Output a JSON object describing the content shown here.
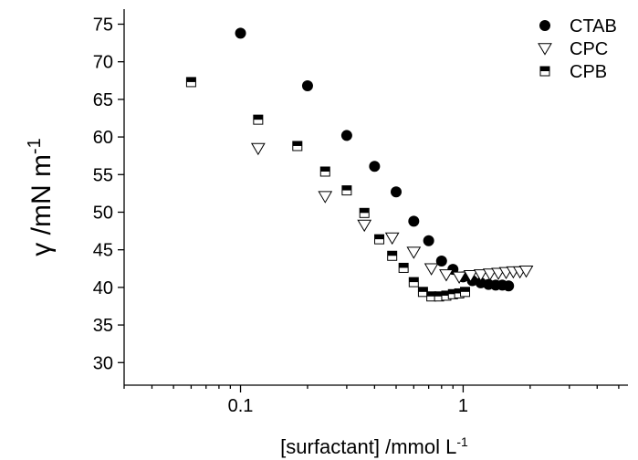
{
  "chart_data": {
    "type": "scatter",
    "title": "",
    "x_scale": "log",
    "xlim": [
      0.03,
      5.5
    ],
    "ylim": [
      27,
      77
    ],
    "grid": false,
    "legend_position": "top-right",
    "xlabel": {
      "main": "[surfactant] /mmol L",
      "sup": "-1"
    },
    "ylabel": {
      "main": "γ /mN m",
      "sup": "-1"
    },
    "x_ticks": [
      {
        "value": 0.1,
        "label": "0.1"
      },
      {
        "value": 1,
        "label": "1"
      }
    ],
    "y_ticks": [
      {
        "value": 30,
        "label": "30"
      },
      {
        "value": 35,
        "label": "35"
      },
      {
        "value": 40,
        "label": "40"
      },
      {
        "value": 45,
        "label": "45"
      },
      {
        "value": 50,
        "label": "50"
      },
      {
        "value": 55,
        "label": "55"
      },
      {
        "value": 60,
        "label": "60"
      },
      {
        "value": 65,
        "label": "65"
      },
      {
        "value": 70,
        "label": "70"
      },
      {
        "value": 75,
        "label": "75"
      }
    ],
    "series": [
      {
        "name": "CTAB",
        "marker": "filled-circle",
        "color": "#000000",
        "points": [
          {
            "x": 0.1,
            "y": 73.8
          },
          {
            "x": 0.2,
            "y": 66.8
          },
          {
            "x": 0.3,
            "y": 60.2
          },
          {
            "x": 0.4,
            "y": 56.1
          },
          {
            "x": 0.5,
            "y": 52.7
          },
          {
            "x": 0.6,
            "y": 48.8
          },
          {
            "x": 0.7,
            "y": 46.2
          },
          {
            "x": 0.8,
            "y": 43.5
          },
          {
            "x": 0.9,
            "y": 42.4
          },
          {
            "x": 1.0,
            "y": 41.4
          },
          {
            "x": 1.1,
            "y": 40.9
          },
          {
            "x": 1.2,
            "y": 40.6
          },
          {
            "x": 1.3,
            "y": 40.4
          },
          {
            "x": 1.4,
            "y": 40.3
          },
          {
            "x": 1.5,
            "y": 40.3
          },
          {
            "x": 1.6,
            "y": 40.2
          }
        ]
      },
      {
        "name": "CPC",
        "marker": "open-triangle-down",
        "color": "#000000",
        "points": [
          {
            "x": 0.12,
            "y": 58.5
          },
          {
            "x": 0.24,
            "y": 52.1
          },
          {
            "x": 0.36,
            "y": 48.3
          },
          {
            "x": 0.48,
            "y": 46.6
          },
          {
            "x": 0.6,
            "y": 44.7
          },
          {
            "x": 0.72,
            "y": 42.5
          },
          {
            "x": 0.84,
            "y": 41.7
          },
          {
            "x": 0.96,
            "y": 41.4
          },
          {
            "x": 1.08,
            "y": 41.6
          },
          {
            "x": 1.2,
            "y": 41.7
          },
          {
            "x": 1.32,
            "y": 41.8
          },
          {
            "x": 1.44,
            "y": 41.9
          },
          {
            "x": 1.56,
            "y": 42.0
          },
          {
            "x": 1.68,
            "y": 42.1
          },
          {
            "x": 1.8,
            "y": 42.1
          },
          {
            "x": 1.92,
            "y": 42.2
          }
        ]
      },
      {
        "name": "CPB",
        "marker": "half-filled-square",
        "color": "#000000",
        "points": [
          {
            "x": 0.06,
            "y": 67.3
          },
          {
            "x": 0.12,
            "y": 62.3
          },
          {
            "x": 0.18,
            "y": 58.8
          },
          {
            "x": 0.24,
            "y": 55.4
          },
          {
            "x": 0.3,
            "y": 52.9
          },
          {
            "x": 0.36,
            "y": 49.9
          },
          {
            "x": 0.42,
            "y": 46.4
          },
          {
            "x": 0.48,
            "y": 44.2
          },
          {
            "x": 0.54,
            "y": 42.6
          },
          {
            "x": 0.6,
            "y": 40.7
          },
          {
            "x": 0.66,
            "y": 39.4
          },
          {
            "x": 0.72,
            "y": 38.8
          },
          {
            "x": 0.78,
            "y": 38.8
          },
          {
            "x": 0.84,
            "y": 38.9
          },
          {
            "x": 0.9,
            "y": 39.1
          },
          {
            "x": 0.96,
            "y": 39.2
          },
          {
            "x": 1.02,
            "y": 39.4
          }
        ]
      }
    ]
  }
}
